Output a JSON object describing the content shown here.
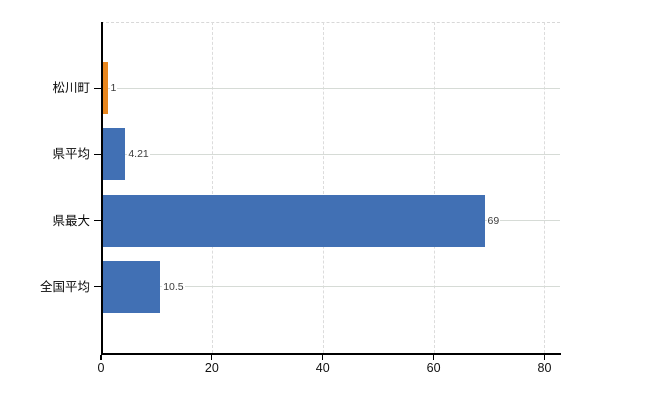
{
  "chart_data": {
    "type": "bar",
    "orientation": "horizontal",
    "categories": [
      "松川町",
      "県平均",
      "県最大",
      "全国平均"
    ],
    "values": [
      1,
      4.21,
      69,
      10.5
    ],
    "value_labels": [
      "1",
      "4.21",
      "69",
      "10.5"
    ],
    "bar_colors": [
      "#e8861e",
      "#4170b4",
      "#4170b4",
      "#4170b4"
    ],
    "x_ticks": [
      0,
      20,
      40,
      60,
      80
    ],
    "x_tick_labels": [
      "0",
      "20",
      "40",
      "60",
      "80"
    ],
    "xlim": [
      0,
      82.8
    ],
    "grid": "on",
    "legend": "none",
    "colors": {
      "bar_orange": "#e8861e",
      "bar_blue": "#4170b4",
      "grid_h": "#d6dbd6",
      "grid_v": "#dcdcdc",
      "axis": "#000000",
      "category_text": "#0a0a0a",
      "value_text": "#3c3c3c",
      "background": "#ffffff"
    }
  }
}
